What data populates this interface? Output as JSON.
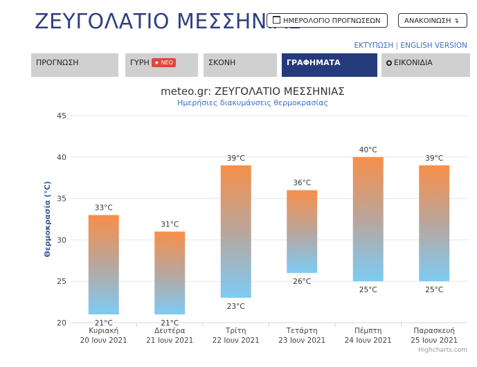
{
  "header": {
    "title": "ΖΕΥΓΟΛΑΤΙΟ ΜΕΣΣΗΝΙΑΣ",
    "calendar_button": "ΗΜΕΡΟΛΟΓΙΟ ΠΡΟΓΝΩΣΕΩΝ",
    "announcement_button": "ΑΝΑΚΟΙΝΩΣΗ ↴",
    "print_link": "ΕΚΤΥΠΩΣΗ",
    "separator": "|",
    "english_link": "ENGLISH VERSION"
  },
  "tabs": [
    {
      "label": "ΠΡΟΓΝΩΣΗ"
    },
    {
      "label": "ΓΥΡΗ",
      "badge": "★ ΝΕΟ"
    },
    {
      "label": "ΣΚΟΝΗ"
    },
    {
      "label": "ΓΡΑΦΗΜΑΤΑ",
      "active": true
    },
    {
      "label": "ΕΙΚΟΝΙΔΙΑ"
    }
  ],
  "chart_data": {
    "type": "bar",
    "subtype": "columnrange",
    "title": "meteo.gr: ΖΕΥΓΟΛΑΤΙΟ ΜΕΣΣΗΝΙΑΣ",
    "subtitle": "Ημερήσιες διακυμάνσεις θερμοκρασίας",
    "ylabel": "Θερμοκρασία (°C)",
    "ylim": [
      20,
      45
    ],
    "yticks": [
      20,
      25,
      30,
      35,
      40,
      45
    ],
    "categories": [
      [
        "Κυριακή",
        "20 Ιουν 2021"
      ],
      [
        "Δευτέρα",
        "21 Ιουν 2021"
      ],
      [
        "Τρίτη",
        "22 Ιουν 2021"
      ],
      [
        "Τετάρτη",
        "23 Ιουν 2021"
      ],
      [
        "Πέμπτη",
        "24 Ιουν 2021"
      ],
      [
        "Παρασκευή",
        "25 Ιουν 2021"
      ]
    ],
    "low": [
      21,
      21,
      23,
      26,
      25,
      25
    ],
    "high": [
      33,
      31,
      39,
      36,
      40,
      39
    ],
    "unit": "°C",
    "credits": "Highcharts.com",
    "colors": {
      "top": "#f78f4a",
      "bottom": "#7ecbf5",
      "grid": "#e6e6e6",
      "title": "#333333",
      "subtitle": "#3a6ec8",
      "ylabel": "#3a5c9a"
    }
  }
}
